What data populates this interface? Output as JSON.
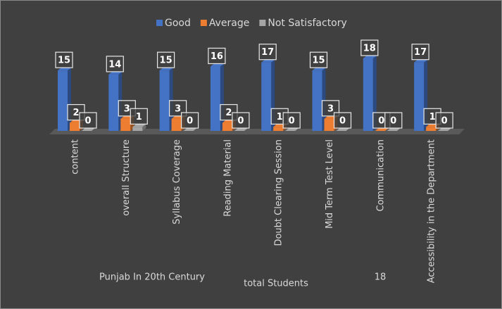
{
  "chart_data": {
    "type": "bar3d",
    "categories": [
      "content",
      "overall Structure",
      "Syllabus Coverage",
      "Reading Material",
      "Doubt Clearing Session",
      "Mid Term Test Level",
      "Communication",
      "Accessibility in the Department"
    ],
    "series": [
      {
        "name": "Good",
        "color": "#4472c4",
        "values": [
          15,
          14,
          15,
          16,
          17,
          15,
          18,
          17
        ]
      },
      {
        "name": "Average",
        "color": "#ed7d31",
        "values": [
          2,
          3,
          3,
          2,
          1,
          3,
          0,
          1
        ]
      },
      {
        "name": "Not Satisfactory",
        "color": "#a5a5a5",
        "values": [
          0,
          1,
          0,
          0,
          0,
          0,
          0,
          0
        ]
      }
    ],
    "legend": "top",
    "annotations": [
      "Punjab In 20th Century",
      "total Students",
      "18"
    ]
  }
}
